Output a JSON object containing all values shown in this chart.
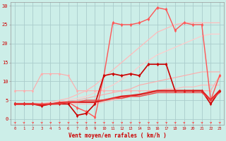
{
  "xlabel": "Vent moyen/en rafales ( km/h )",
  "background_color": "#cceee8",
  "grid_color": "#aacccc",
  "x_ticks": [
    0,
    1,
    2,
    3,
    4,
    5,
    6,
    7,
    8,
    9,
    10,
    11,
    12,
    13,
    14,
    15,
    16,
    17,
    18,
    19,
    20,
    21,
    22,
    23
  ],
  "ylim": [
    -1.5,
    31
  ],
  "xlim": [
    -0.5,
    23.5
  ],
  "lines": [
    {
      "x": [
        0,
        1,
        2,
        3,
        4,
        5,
        6,
        7,
        8,
        9,
        10,
        11,
        12,
        13,
        14,
        15,
        16,
        17,
        18,
        19,
        20,
        21,
        22,
        23
      ],
      "y": [
        7.5,
        7.5,
        7.5,
        12,
        12,
        12,
        11.5,
        7.5,
        7.5,
        7.5,
        7.5,
        7.5,
        7.5,
        7.5,
        7.5,
        7.5,
        7.5,
        7.5,
        7.5,
        7.5,
        7.5,
        7.5,
        7.5,
        11.5
      ],
      "color": "#ffaaaa",
      "lw": 0.8,
      "marker": "d",
      "ms": 2.0
    },
    {
      "x": [
        0,
        1,
        2,
        3,
        4,
        5,
        6,
        7,
        8,
        9,
        10,
        11,
        12,
        13,
        14,
        15,
        16,
        17,
        18,
        19,
        20,
        21,
        22,
        23
      ],
      "y": [
        4,
        4,
        4,
        4,
        4.5,
        5,
        5.5,
        6.5,
        7.5,
        9,
        11,
        13,
        15,
        17,
        19,
        21,
        23,
        24,
        25,
        25.5,
        25.5,
        25.5,
        25.5,
        25.5
      ],
      "color": "#ffbbbb",
      "lw": 0.9,
      "marker": null,
      "ms": 0
    },
    {
      "x": [
        0,
        1,
        2,
        3,
        4,
        5,
        6,
        7,
        8,
        9,
        10,
        11,
        12,
        13,
        14,
        15,
        16,
        17,
        18,
        19,
        20,
        21,
        22,
        23
      ],
      "y": [
        4,
        4,
        4,
        4,
        4,
        4.5,
        5,
        5.5,
        6,
        7,
        8,
        9,
        10.5,
        12,
        14,
        15.5,
        17,
        18,
        19,
        20,
        21,
        22,
        22.5,
        22.5
      ],
      "color": "#ffcccc",
      "lw": 0.9,
      "marker": null,
      "ms": 0
    },
    {
      "x": [
        0,
        1,
        2,
        3,
        4,
        5,
        6,
        7,
        8,
        9,
        10,
        11,
        12,
        13,
        14,
        15,
        16,
        17,
        18,
        19,
        20,
        21,
        22,
        23
      ],
      "y": [
        4,
        4,
        4,
        4,
        4,
        4,
        4.5,
        5,
        5.5,
        6,
        6.5,
        7,
        7.5,
        8,
        9,
        9.5,
        10,
        10.5,
        11,
        11.5,
        12,
        12.5,
        12.5,
        12.5
      ],
      "color": "#ffaaaa",
      "lw": 0.8,
      "marker": null,
      "ms": 0
    },
    {
      "x": [
        0,
        1,
        2,
        3,
        4,
        5,
        6,
        7,
        8,
        9,
        10,
        11,
        12,
        13,
        14,
        15,
        16,
        17,
        18,
        19,
        20,
        21,
        22,
        23
      ],
      "y": [
        4,
        4,
        4,
        4,
        4,
        4,
        4,
        4,
        4,
        4,
        4.5,
        5,
        5.5,
        6,
        6.5,
        7,
        7.5,
        8,
        8,
        8.5,
        8.5,
        9,
        9,
        9
      ],
      "color": "#ffbbbb",
      "lw": 0.8,
      "marker": null,
      "ms": 0
    },
    {
      "x": [
        0,
        1,
        2,
        3,
        4,
        5,
        6,
        7,
        8,
        9,
        10,
        11,
        12,
        13,
        14,
        15,
        16,
        17,
        18,
        19,
        20,
        21,
        22,
        23
      ],
      "y": [
        4,
        4,
        4,
        4,
        4,
        4.5,
        4.5,
        3,
        2,
        0.5,
        11.5,
        25.5,
        25,
        25,
        25.5,
        26.5,
        29.5,
        29,
        23.5,
        25.5,
        25,
        25,
        5,
        11.5
      ],
      "color": "#ff5555",
      "lw": 1.0,
      "marker": "d",
      "ms": 2.5
    },
    {
      "x": [
        0,
        1,
        2,
        3,
        4,
        5,
        6,
        7,
        8,
        9,
        10,
        11,
        12,
        13,
        14,
        15,
        16,
        17,
        18,
        19,
        20,
        21,
        22,
        23
      ],
      "y": [
        4,
        4,
        4,
        3.5,
        4,
        4,
        4,
        1,
        1.5,
        4,
        11.5,
        12,
        11.5,
        12,
        11.5,
        14.5,
        14.5,
        14.5,
        7.5,
        7.5,
        7.5,
        7.5,
        4,
        7.5
      ],
      "color": "#cc0000",
      "lw": 1.2,
      "marker": "d",
      "ms": 2.5
    },
    {
      "x": [
        0,
        1,
        2,
        3,
        4,
        5,
        6,
        7,
        8,
        9,
        10,
        11,
        12,
        13,
        14,
        15,
        16,
        17,
        18,
        19,
        20,
        21,
        22,
        23
      ],
      "y": [
        4,
        4,
        4,
        3.8,
        4,
        4.2,
        4.5,
        4.5,
        4.5,
        4.5,
        5,
        5.5,
        6,
        6.2,
        6.5,
        7,
        7.5,
        7.5,
        7.5,
        7.5,
        7.5,
        7.5,
        5,
        7.5
      ],
      "color": "#dd2222",
      "lw": 1.8,
      "marker": null,
      "ms": 0
    },
    {
      "x": [
        0,
        1,
        2,
        3,
        4,
        5,
        6,
        7,
        8,
        9,
        10,
        11,
        12,
        13,
        14,
        15,
        16,
        17,
        18,
        19,
        20,
        21,
        22,
        23
      ],
      "y": [
        4,
        4,
        4,
        4,
        4,
        4,
        4.5,
        4.5,
        5,
        5,
        5,
        5.5,
        5.5,
        6,
        6,
        6.5,
        7,
        7,
        7,
        7,
        7,
        7,
        5,
        7
      ],
      "color": "#ee4444",
      "lw": 1.0,
      "marker": null,
      "ms": 0
    }
  ],
  "wind_arrow_color": "#ff4444"
}
